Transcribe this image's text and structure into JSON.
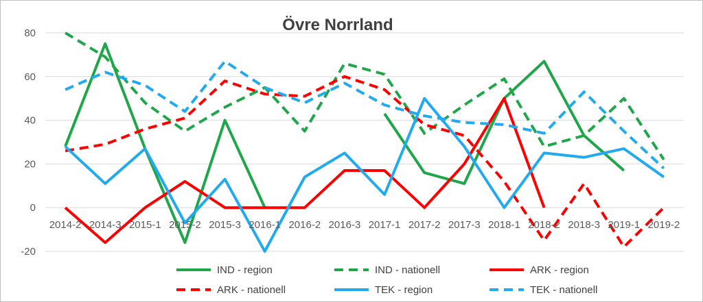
{
  "chart_data": {
    "type": "line",
    "title": "Övre Norrland",
    "xlabel": "",
    "ylabel": "",
    "ylim": [
      -20,
      80
    ],
    "yticks": [
      -20,
      0,
      20,
      40,
      60,
      80
    ],
    "grid": true,
    "legend_position": "bottom",
    "categories": [
      "2014-2",
      "2014-3",
      "2015-1",
      "2015-2",
      "2015-3",
      "2016-1",
      "2016-2",
      "2016-3",
      "2017-1",
      "2017-2",
      "2017-3",
      "2018-1",
      "2018-2",
      "2018-3",
      "2019-1",
      "2019-2"
    ],
    "series": [
      {
        "name": "IND - region",
        "color": "#1fa64a",
        "dash": false,
        "values": [
          28,
          75,
          27,
          -16,
          40,
          0,
          null,
          null,
          43,
          16,
          11,
          50,
          67,
          33,
          17,
          null
        ]
      },
      {
        "name": "IND - nationell",
        "color": "#1fa64a",
        "dash": true,
        "values": [
          80,
          69,
          48,
          35,
          46,
          55,
          35,
          66,
          61,
          34,
          47,
          59,
          28,
          33,
          50,
          22
        ]
      },
      {
        "name": "ARK - region",
        "color": "#ff0000",
        "dash": false,
        "values": [
          0,
          -16,
          0,
          12,
          0,
          0,
          0,
          17,
          17,
          0,
          20,
          50,
          0,
          null,
          null,
          null
        ]
      },
      {
        "name": "ARK - nationell",
        "color": "#ff0000",
        "dash": true,
        "values": [
          26,
          29,
          36,
          41,
          58,
          52,
          51,
          60,
          54,
          38,
          33,
          12,
          -15,
          11,
          -18,
          0
        ]
      },
      {
        "name": "TEK - region",
        "color": "#22aaee",
        "dash": false,
        "values": [
          28,
          11,
          27,
          -7,
          13,
          -20,
          14,
          25,
          6,
          50,
          28,
          0,
          25,
          23,
          27,
          14
        ]
      },
      {
        "name": "TEK - nationell",
        "color": "#22aaee",
        "dash": true,
        "values": [
          54,
          62,
          56,
          44,
          67,
          55,
          48,
          57,
          47,
          42,
          39,
          38,
          34,
          53,
          35,
          18
        ]
      }
    ]
  }
}
